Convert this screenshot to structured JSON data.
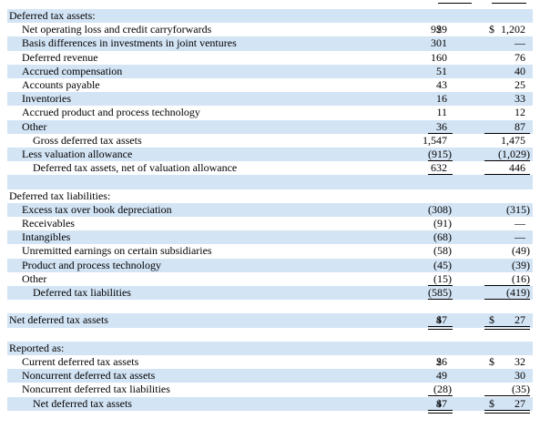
{
  "table": {
    "rows": [
      {
        "label": "Deferred tax assets:"
      },
      {
        "label": "Net operating loss and credit carryforwards",
        "currency": [
          "$",
          "$"
        ],
        "values": [
          "929",
          "1,202"
        ]
      },
      {
        "label": "Basis differences in investments in joint ventures",
        "values": [
          "301",
          "—"
        ]
      },
      {
        "label": "Deferred revenue",
        "values": [
          "160",
          "76"
        ]
      },
      {
        "label": "Accrued compensation",
        "values": [
          "51",
          "40"
        ]
      },
      {
        "label": "Accounts payable",
        "values": [
          "43",
          "25"
        ]
      },
      {
        "label": "Inventories",
        "values": [
          "16",
          "33"
        ]
      },
      {
        "label": "Accrued product and process technology",
        "values": [
          "11",
          "12"
        ]
      },
      {
        "label": "Other",
        "values": [
          "36",
          "87"
        ]
      },
      {
        "label": "Gross deferred tax assets",
        "values": [
          "1,547",
          "1,475"
        ]
      },
      {
        "label": "Less valuation allowance",
        "values": [
          "(915)",
          "(1,029)"
        ]
      },
      {
        "label": "Deferred tax assets, net of valuation allowance",
        "values": [
          "632",
          "446"
        ]
      },
      {
        "label": "Deferred tax liabilities:"
      },
      {
        "label": "Excess tax over book depreciation",
        "values": [
          "(308)",
          "(315)"
        ]
      },
      {
        "label": "Receivables",
        "values": [
          "(91)",
          "—"
        ]
      },
      {
        "label": "Intangibles",
        "values": [
          "(68)",
          "—"
        ]
      },
      {
        "label": "Unremitted earnings on certain subsidiaries",
        "values": [
          "(58)",
          "(49)"
        ]
      },
      {
        "label": "Product and process technology",
        "values": [
          "(45)",
          "(39)"
        ]
      },
      {
        "label": "Other",
        "values": [
          "(15)",
          "(16)"
        ]
      },
      {
        "label": "Deferred tax liabilities",
        "values": [
          "(585)",
          "(419)"
        ]
      },
      {
        "label": "Net deferred tax assets",
        "currency": [
          "$",
          "$"
        ],
        "values": [
          "47",
          "27"
        ]
      },
      {
        "label": "Reported as:"
      },
      {
        "label": "Current deferred tax assets",
        "currency": [
          "$",
          "$"
        ],
        "values": [
          "26",
          "32"
        ]
      },
      {
        "label": "Noncurrent deferred tax assets",
        "values": [
          "49",
          "30"
        ]
      },
      {
        "label": "Noncurrent deferred tax liabilities",
        "values": [
          "(28)",
          "(35)"
        ]
      },
      {
        "label": "Net deferred tax assets",
        "currency": [
          "$",
          "$"
        ],
        "values": [
          "47",
          "27"
        ]
      }
    ]
  }
}
